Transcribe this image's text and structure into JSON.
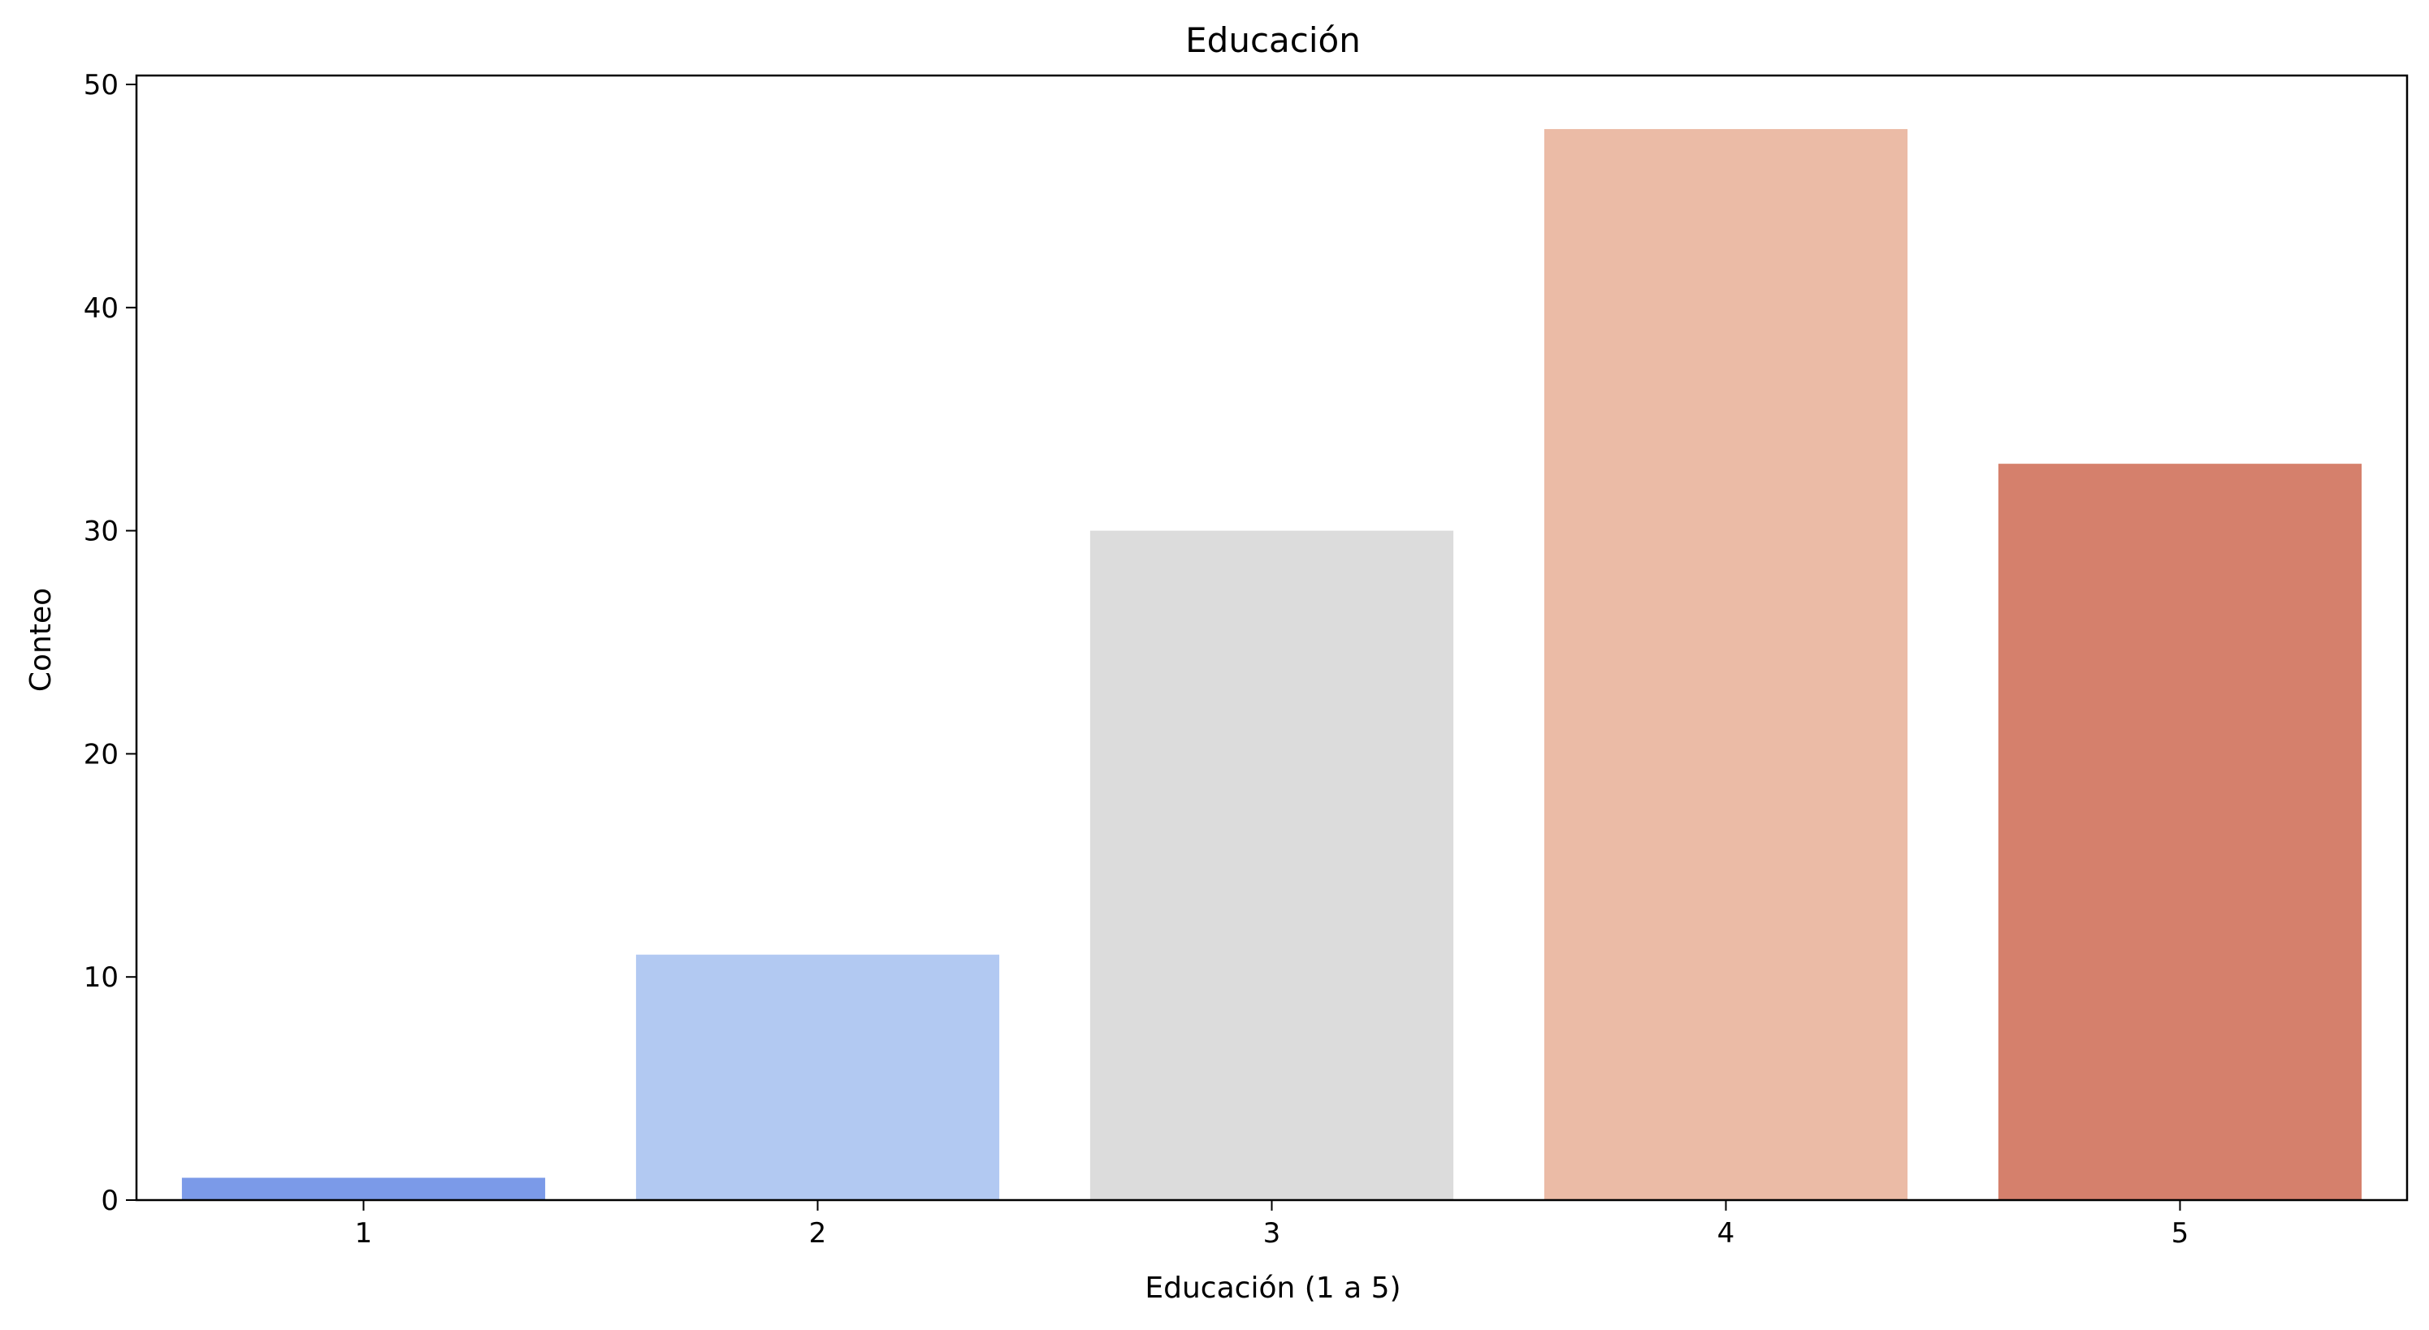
{
  "chart_data": {
    "type": "bar",
    "title": "Educación",
    "xlabel": "Educación (1 a 5)",
    "ylabel": "Conteo",
    "categories": [
      "1",
      "2",
      "3",
      "4",
      "5"
    ],
    "values": [
      1,
      11,
      30,
      48,
      33
    ],
    "colors": [
      "#7b9ae8",
      "#b2c9f2",
      "#dcdcdc",
      "#ebbba6",
      "#d5806c"
    ],
    "ylim": [
      0,
      50.4
    ],
    "yticks": [
      0,
      10,
      20,
      30,
      40,
      50
    ],
    "grid": false,
    "legend": "none"
  }
}
